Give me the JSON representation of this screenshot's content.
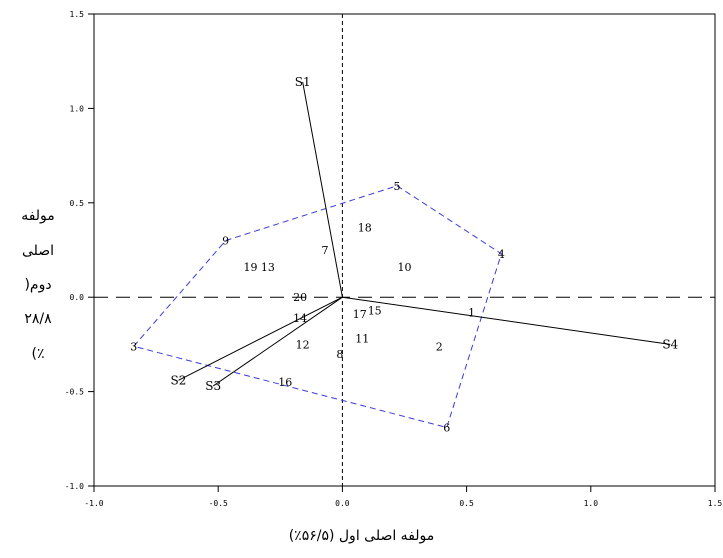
{
  "chart_data": {
    "type": "scatter",
    "title": "",
    "xlabel": "مولفه اصلی اول (۵۶/۵٪)",
    "ylabel_lines": [
      "مولفه",
      "اصلی",
      "دوم(",
      "۲۸/۸",
      "٪)"
    ],
    "xlim": [
      -1.0,
      1.5
    ],
    "ylim": [
      -1.0,
      1.5
    ],
    "x_ticks": [
      "-1.0",
      "-0.5",
      "0.0",
      "0.5",
      "1.0",
      "1.5"
    ],
    "y_ticks": [
      "-1.0",
      "-0.5",
      "0.0",
      "0.5",
      "1.0",
      "1.5"
    ],
    "grid": false,
    "points": [
      {
        "label": "1",
        "x": 0.52,
        "y": -0.08
      },
      {
        "label": "2",
        "x": 0.39,
        "y": -0.26
      },
      {
        "label": "3",
        "x": -0.84,
        "y": -0.26
      },
      {
        "label": "4",
        "x": 0.64,
        "y": 0.23
      },
      {
        "label": "5",
        "x": 0.22,
        "y": 0.59
      },
      {
        "label": "6",
        "x": 0.42,
        "y": -0.69
      },
      {
        "label": "7",
        "x": -0.07,
        "y": 0.25
      },
      {
        "label": "8",
        "x": -0.01,
        "y": -0.3
      },
      {
        "label": "9",
        "x": -0.47,
        "y": 0.3
      },
      {
        "label": "10",
        "x": 0.25,
        "y": 0.16
      },
      {
        "label": "11",
        "x": 0.08,
        "y": -0.22
      },
      {
        "label": "12",
        "x": -0.16,
        "y": -0.25
      },
      {
        "label": "13",
        "x": -0.3,
        "y": 0.16
      },
      {
        "label": "14",
        "x": -0.17,
        "y": -0.11
      },
      {
        "label": "15",
        "x": 0.13,
        "y": -0.07
      },
      {
        "label": "16",
        "x": -0.23,
        "y": -0.45
      },
      {
        "label": "17",
        "x": 0.07,
        "y": -0.09
      },
      {
        "label": "18",
        "x": 0.09,
        "y": 0.37
      },
      {
        "label": "19",
        "x": -0.37,
        "y": 0.16
      },
      {
        "label": "20",
        "x": -0.17,
        "y": 0.0
      }
    ],
    "vectors": [
      {
        "label": "S1",
        "x": -0.16,
        "y": 1.14
      },
      {
        "label": "S2",
        "x": -0.66,
        "y": -0.44
      },
      {
        "label": "S3",
        "x": -0.52,
        "y": -0.47
      },
      {
        "label": "S4",
        "x": 1.32,
        "y": -0.25
      }
    ],
    "hull_order": [
      "3",
      "9",
      "5",
      "4",
      "6",
      "3"
    ],
    "colors": {
      "hull": "#3b3bdc",
      "axes": "#000000",
      "vectors": "#000000",
      "text": "#000000"
    }
  }
}
